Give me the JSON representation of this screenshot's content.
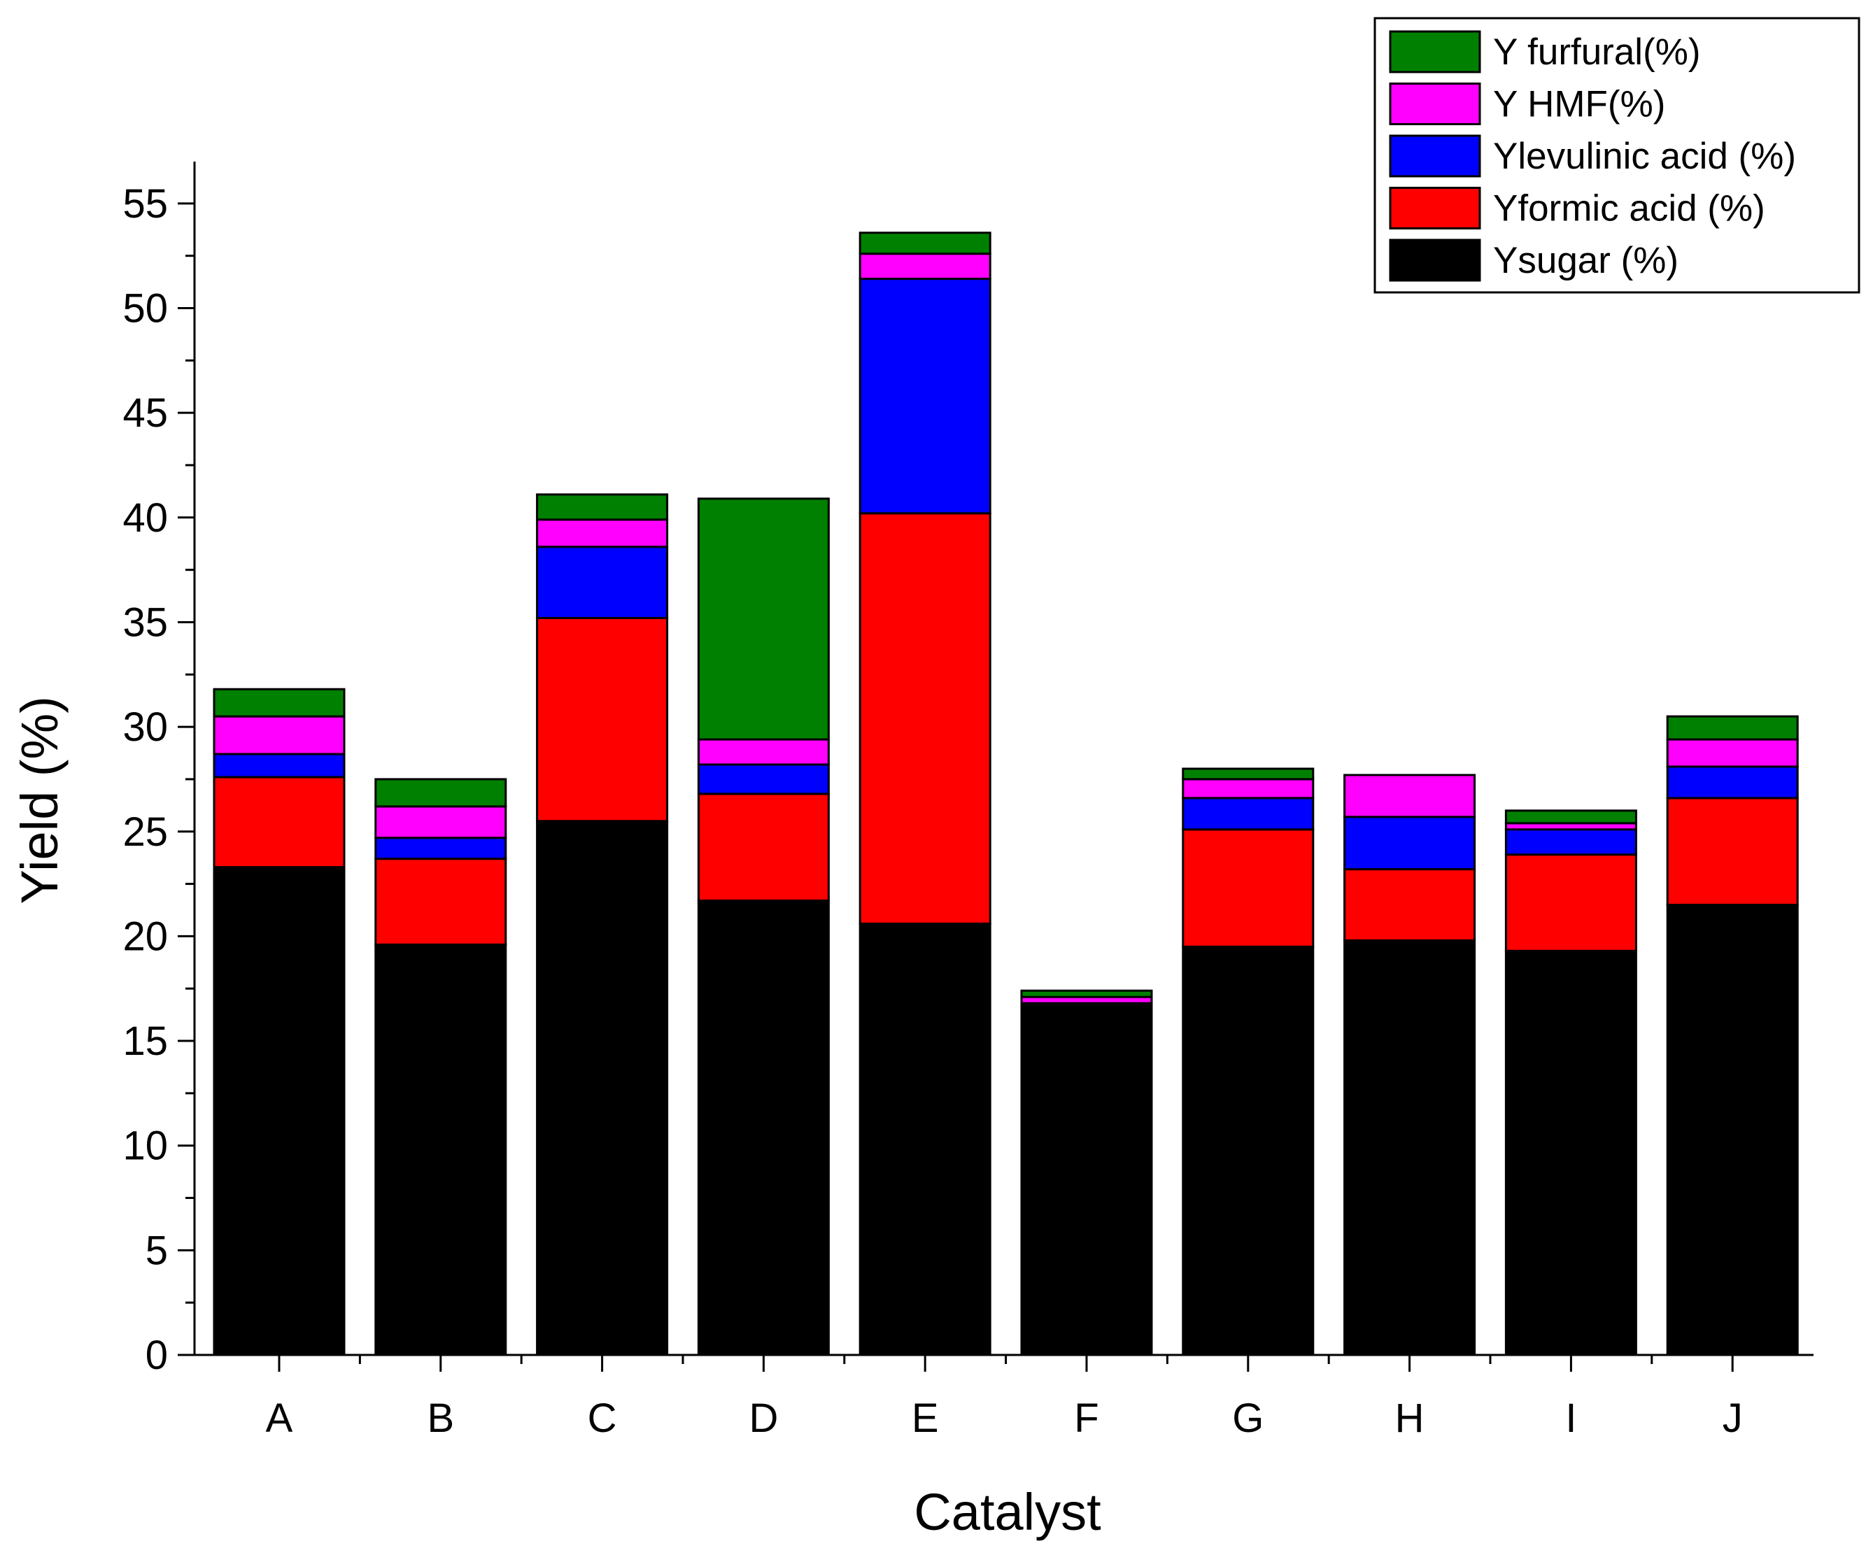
{
  "chart_data": {
    "type": "bar",
    "stacked": true,
    "title": "",
    "xlabel": "Catalyst",
    "ylabel": "Yield (%)",
    "ylim": [
      0,
      57
    ],
    "y_ticks": [
      0,
      5,
      10,
      15,
      20,
      25,
      30,
      35,
      40,
      45,
      50,
      55
    ],
    "legend_position": "top-right",
    "grid": false,
    "categories": [
      "A",
      "B",
      "C",
      "D",
      "E",
      "F",
      "G",
      "H",
      "I",
      "J"
    ],
    "series": [
      {
        "name": "Ysugar (%)",
        "color": "#000000",
        "values": [
          23.3,
          19.6,
          25.5,
          21.7,
          20.6,
          16.8,
          19.5,
          19.8,
          19.3,
          21.5
        ]
      },
      {
        "name": "Yformic acid (%)",
        "color": "#ff0000",
        "values": [
          4.3,
          4.1,
          9.7,
          5.1,
          19.6,
          0.0,
          5.6,
          3.4,
          4.6,
          5.1
        ]
      },
      {
        "name": "Ylevulinic acid (%)",
        "color": "#0000ff",
        "values": [
          1.1,
          1.0,
          3.4,
          1.4,
          11.2,
          0.0,
          1.5,
          2.5,
          1.2,
          1.5
        ]
      },
      {
        "name": "Y HMF(%)",
        "color": "#ff00ff",
        "values": [
          1.8,
          1.5,
          1.3,
          1.2,
          1.2,
          0.3,
          0.9,
          2.0,
          0.3,
          1.3
        ]
      },
      {
        "name": "Y furfural(%)",
        "color": "#008000",
        "values": [
          1.3,
          1.3,
          1.2,
          11.5,
          1.0,
          0.3,
          0.5,
          0.0,
          0.6,
          1.1
        ]
      }
    ]
  }
}
